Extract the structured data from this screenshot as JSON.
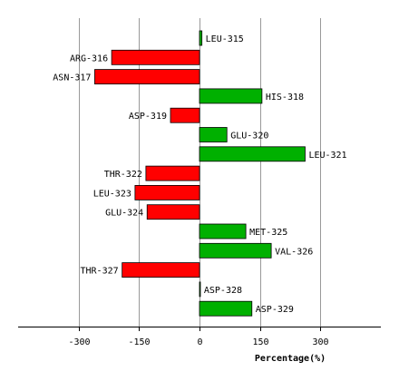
{
  "chart_data": {
    "type": "bar",
    "orientation": "horizontal",
    "categories": [
      "LEU-315",
      "ARG-316",
      "ASN-317",
      "HIS-318",
      "ASP-319",
      "GLU-320",
      "LEU-321",
      "THR-322",
      "LEU-323",
      "GLU-324",
      "MET-325",
      "VAL-326",
      "THR-327",
      "ASP-328",
      "ASP-329"
    ],
    "values": [
      6,
      -218,
      -260,
      155,
      -72,
      68,
      262,
      -133,
      -160,
      -130,
      115,
      178,
      -192,
      2,
      130
    ],
    "xlabel": "Percentage(%)",
    "ylabel": "",
    "title": "",
    "xlim": [
      -450,
      450
    ],
    "xticks": [
      -300,
      -150,
      0,
      150,
      300
    ],
    "xtick_labels": [
      "-300",
      "-150",
      "0",
      "150",
      "300"
    ],
    "grid": "vertical",
    "colors": {
      "positive": "#00b000",
      "negative": "#ff0000",
      "grid": "#999999",
      "axis": "#000000"
    }
  }
}
